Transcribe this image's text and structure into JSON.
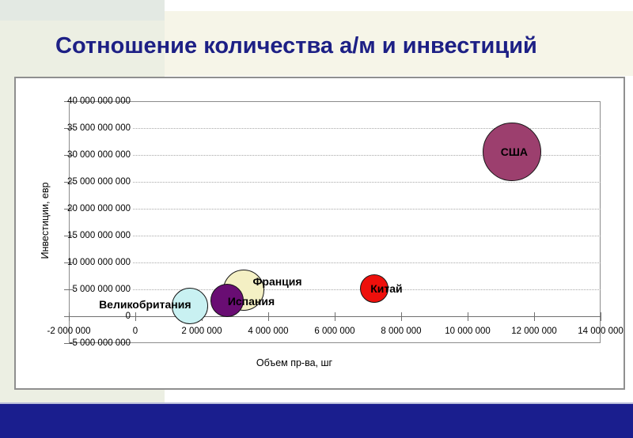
{
  "slide": {
    "title": "Сотношение количества а/м и инвестиций",
    "title_color": "#1d2085",
    "footer_color": "#1a1e8e"
  },
  "chart_data": {
    "type": "bubble",
    "title": "",
    "xlabel": "Объем пр-ва, шг",
    "ylabel": "Инвестиции, евр",
    "x_axis": {
      "title": "Объем пр-ва, шг",
      "min": -2000000,
      "max": 14000000,
      "tick_step": 2000000,
      "tick_values": [
        -2000000,
        0,
        2000000,
        4000000,
        6000000,
        8000000,
        10000000,
        12000000,
        14000000
      ],
      "tick_labels": [
        "-2 000 000",
        "0",
        "2 000 000",
        "4 000 000",
        "6 000 000",
        "8 000 000",
        "10 000 000",
        "12 000 000",
        "14 000 000"
      ]
    },
    "y_axis": {
      "title": "Инвестиции, евр",
      "min": -5000000000,
      "max": 40000000000,
      "tick_step": 5000000000,
      "tick_values": [
        40000000000,
        35000000000,
        30000000000,
        25000000000,
        20000000000,
        15000000000,
        10000000000,
        5000000000,
        0,
        -5000000000
      ],
      "tick_labels": [
        "40 000 000 000",
        "35 000 000 000",
        "30 000 000 000",
        "25 000 000 000",
        "20 000 000 000",
        "15 000 000 000",
        "10 000 000 000",
        "5 000 000 000",
        "0",
        "-5 000 000 000"
      ]
    },
    "grid": {
      "horizontal": "dotted",
      "vertical": "off"
    },
    "legend": "none",
    "series": [
      {
        "id": "uk",
        "name": "Великобритания",
        "x": 1650000,
        "y": 1900000000,
        "color": "#c9f1f2",
        "radius_px": 23,
        "label_dx": -57,
        "label_dy": -2
      },
      {
        "id": "france",
        "name": "Франция",
        "x": 3250000,
        "y": 4800000000,
        "color": "#f4f0c4",
        "radius_px": 26,
        "label_dx": 43,
        "label_dy": -11
      },
      {
        "id": "spain",
        "name": "Испания",
        "x": 2750000,
        "y": 2900000000,
        "color": "#690d73",
        "radius_px": 21,
        "label_dx": 31,
        "label_dy": 1
      },
      {
        "id": "china",
        "name": "Китай",
        "x": 7200000,
        "y": 5200000000,
        "color": "#ee100c",
        "radius_px": 18,
        "label_dx": 15,
        "label_dy": 0
      },
      {
        "id": "usa",
        "name": "США",
        "x": 11330000,
        "y": 30600000000,
        "color": "#9c3f6e",
        "radius_px": 37,
        "label_dx": 3,
        "label_dy": 0
      }
    ]
  }
}
